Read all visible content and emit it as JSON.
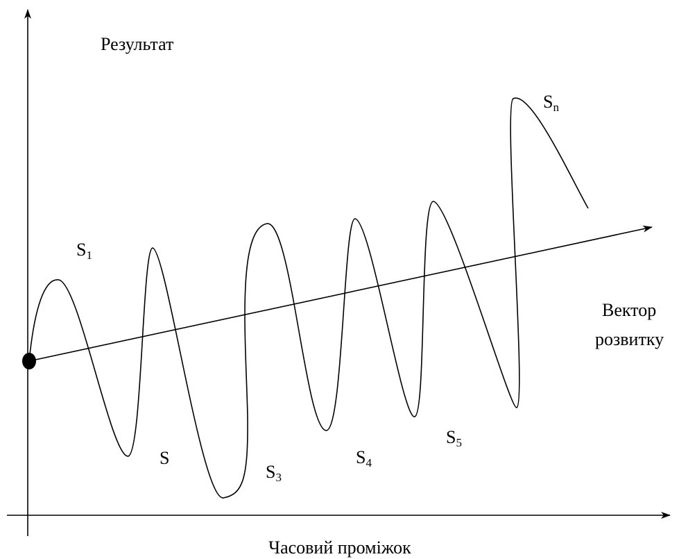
{
  "axes": {
    "y_label": "Результат",
    "x_label": "Часовий проміжок"
  },
  "vector": {
    "line1": "Вектор",
    "line2": "розвитку"
  },
  "stages": [
    {
      "base": "S",
      "sub": "1"
    },
    {
      "base": "S"
    },
    {
      "base": "S",
      "sub": "3"
    },
    {
      "base": "S",
      "sub": "4"
    },
    {
      "base": "S",
      "sub": "5"
    },
    {
      "base": "S",
      "sub": "n"
    }
  ]
}
